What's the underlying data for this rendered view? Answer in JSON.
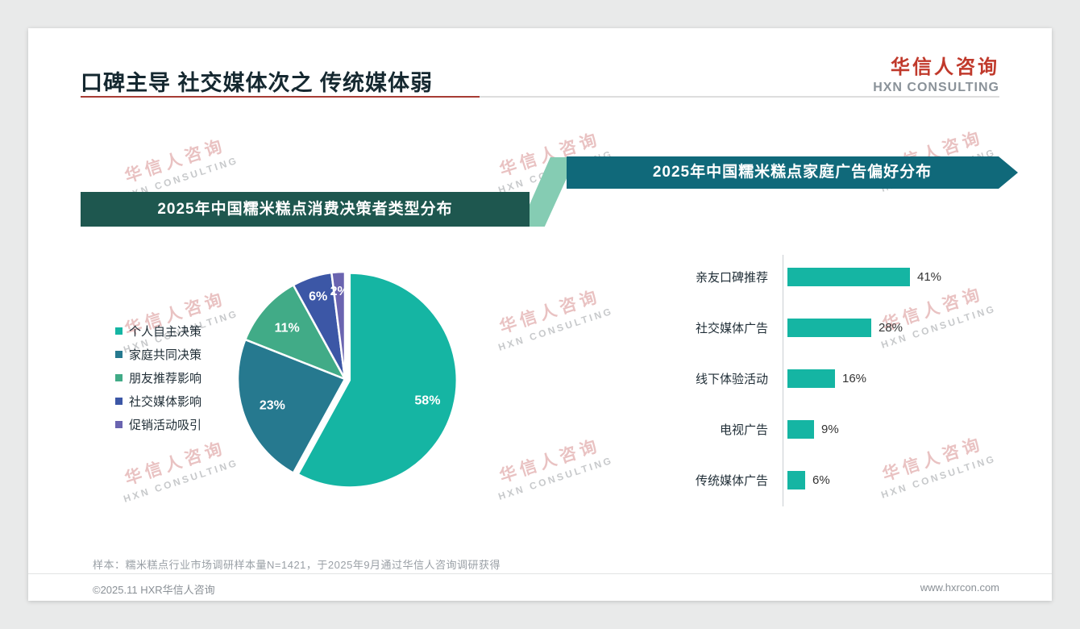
{
  "page": {
    "title": "口碑主导 社交媒体次之 传统媒体弱",
    "logo": {
      "cn": "华信人咨询",
      "en": "HXN CONSULTING"
    },
    "watermark": {
      "cn": "华信人咨询",
      "en": "HXN CONSULTING"
    },
    "sample_note": "样本：糯米糕点行业市场调研样本量N=1421，于2025年9月通过华信人咨询调研获得",
    "footer": {
      "left": "©2025.11 HXR华信人咨询",
      "right": "www.hxrcon.com"
    }
  },
  "theme": {
    "accent_red": "#c0392b",
    "title_rule_red": "#a73b34",
    "banner_left_bg": "#1e574f",
    "banner_right_bg": "#10697a",
    "connector_green": "#85ccb3",
    "page_bg": "#e9eaea"
  },
  "chart_data": [
    {
      "type": "pie",
      "title": "2025年中国糯米糕点消费决策者类型分布",
      "categories": [
        "个人自主决策",
        "家庭共同决策",
        "朋友推荐影响",
        "社交媒体影响",
        "促销活动吸引"
      ],
      "values": [
        58,
        23,
        11,
        6,
        2
      ],
      "labels": [
        "58%",
        "23%",
        "11%",
        "6%",
        "2%"
      ],
      "unit": "%",
      "colors": [
        "#15b5a3",
        "#26798f",
        "#41ab87",
        "#3c57a6",
        "#6a64b0"
      ],
      "legend_position": "left",
      "start_angle_deg": 0,
      "direction": "clockwise"
    },
    {
      "type": "bar",
      "title": "2025年中国糯米糕点家庭广告偏好分布",
      "orientation": "horizontal",
      "categories": [
        "亲友口碑推荐",
        "社交媒体广告",
        "线下体验活动",
        "电视广告",
        "传统媒体广告"
      ],
      "values": [
        41,
        28,
        16,
        9,
        6
      ],
      "labels": [
        "41%",
        "28%",
        "16%",
        "9%",
        "6%"
      ],
      "bar_color": "#15b5a3",
      "xlim": [
        0,
        45
      ],
      "grid": false,
      "value_labels": "end-of-bar"
    }
  ]
}
